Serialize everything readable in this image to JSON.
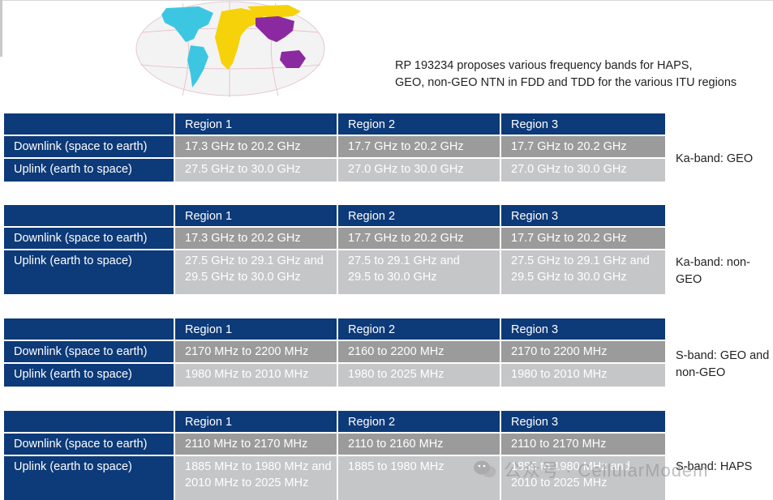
{
  "intro": {
    "line1": "RP 193234 proposes various frequency bands for HAPS,",
    "line2": "GEO, non-GEO NTN in FDD and TDD for the various ITU regions"
  },
  "tables": [
    {
      "headers": [
        "",
        "Region 1",
        "Region 2",
        "Region 3"
      ],
      "downlink": {
        "label": "Downlink (space to earth)",
        "r1": "17.3 GHz to 20.2 GHz",
        "r2": "17.7 GHz to 20.2 GHz",
        "r3": "17.7 GHz to 20.2 GHz"
      },
      "uplink": {
        "label": "Uplink (earth to space)",
        "r1": "27.5 GHz to 30.0 GHz",
        "r2": "27.0 GHz to 30.0 GHz",
        "r3": "27.0 GHz to 30.0 GHz"
      },
      "band": "Ka-band: GEO"
    },
    {
      "headers": [
        "",
        "Region 1",
        "Region 2",
        "Region 3"
      ],
      "downlink": {
        "label": "Downlink (space to earth)",
        "r1": "17.3 GHz to 20.2 GHz",
        "r2": "17.7 GHz to 20.2 GHz",
        "r3": "17.7 GHz to 20.2 GHz"
      },
      "uplink": {
        "label": "Uplink (earth to space)",
        "r1a": "27.5 GHz to 29.1 GHz and",
        "r1b": "29.5 GHz to 30.0 GHz",
        "r2a": "27.5 to 29.1 GHz and",
        "r2b": "29.5 to 30.0 GHz",
        "r3a": "27.5 GHz to 29.1 GHz and",
        "r3b": "29.5 GHz to 30.0 GHz"
      },
      "band": "Ka-band: non-GEO"
    },
    {
      "headers": [
        "",
        "Region 1",
        "Region 2",
        "Region 3"
      ],
      "downlink": {
        "label": "Downlink (space to earth)",
        "r1": "2170 MHz to 2200 MHz",
        "r2": "2160 to 2200 MHz",
        "r3": "2170 to 2200 MHz"
      },
      "uplink": {
        "label": "Uplink (earth to space)",
        "r1": "1980 MHz to 2010 MHz",
        "r2": "1980 to 2025 MHz",
        "r3": "1980 to 2010 MHz"
      },
      "band_a": "S-band: GEO and",
      "band_b": "non-GEO"
    },
    {
      "headers": [
        "",
        "Region 1",
        "Region 2",
        "Region 3"
      ],
      "downlink": {
        "label": "Downlink (space to earth)",
        "r1": "2110 MHz to 2170 MHz",
        "r2": "2110 to 2160 MHz",
        "r3": "2110 to 2170 MHz"
      },
      "uplink": {
        "label": "Uplink (earth to space)",
        "r1a": "1885 MHz to 1980 MHz and",
        "r1b": "2010 MHz to 2025 MHz",
        "r2": "1885 to 1980 MHz",
        "r3a": "1885 to 1980 MHz and",
        "r3b": "2010 to 2025 MHz"
      },
      "band": "S-band: HAPS"
    }
  ],
  "watermark": "公众号 · CellularModem",
  "colors": {
    "header": "#0d3a78",
    "row_dark": "#9b9b9b",
    "row_light": "#c5c6c8"
  }
}
